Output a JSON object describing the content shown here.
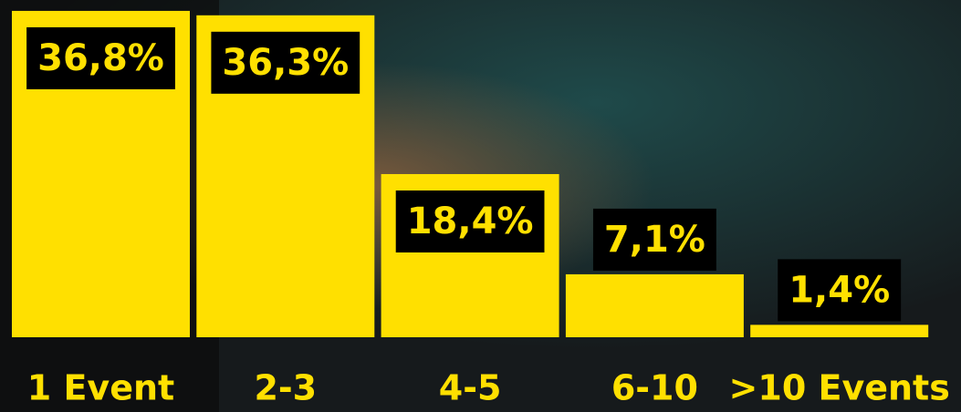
{
  "chart_data": {
    "type": "bar",
    "categories": [
      "1 Event",
      "2-3",
      "4-5",
      "6-10",
      ">10 Events"
    ],
    "values": [
      36.8,
      36.3,
      18.4,
      7.1,
      1.4
    ],
    "value_labels": [
      "36,8%",
      "36,3%",
      "18,4%",
      "7,1%",
      "1,4%"
    ],
    "color": "#ffe000"
  }
}
